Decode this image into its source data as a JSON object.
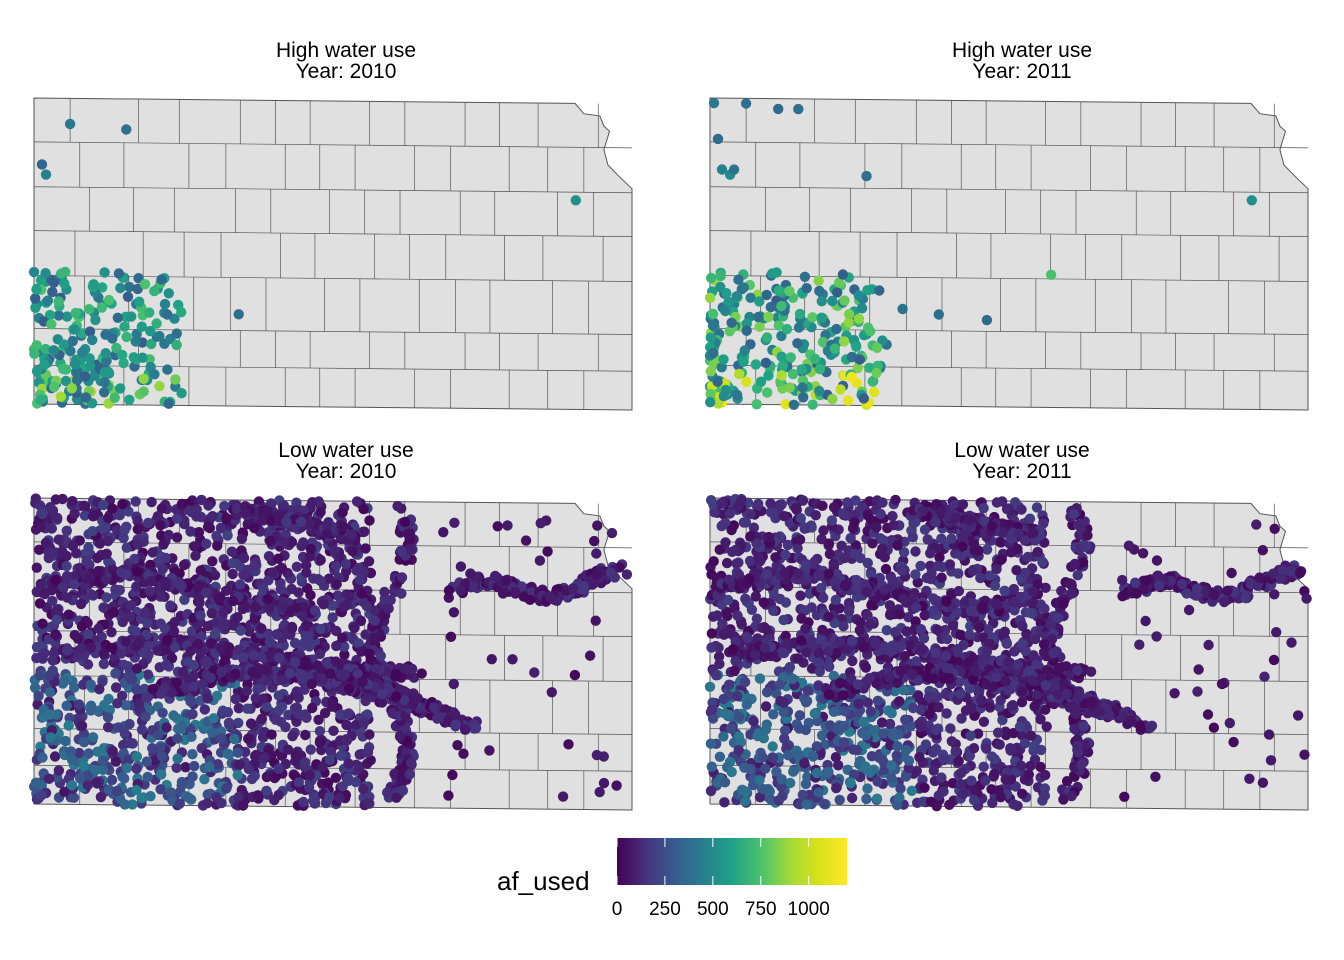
{
  "panels": [
    {
      "group": "High water use",
      "year_label": "Year:  2010",
      "key": "high2010"
    },
    {
      "group": "High water use",
      "year_label": "Year:  2011",
      "key": "high2011"
    },
    {
      "group": "Low water use",
      "year_label": "Year:  2010",
      "key": "low2010"
    },
    {
      "group": "Low water use",
      "year_label": "Year:  2011",
      "key": "low2011"
    }
  ],
  "legend": {
    "title": "af_used",
    "tick_labels": [
      "0",
      "250",
      "500",
      "750",
      "1000"
    ],
    "tick_values": [
      0,
      250,
      500,
      750,
      1000
    ],
    "range": [
      0,
      1200
    ],
    "colors": [
      "#440154",
      "#3b528b",
      "#21908c",
      "#5dc863",
      "#fde725"
    ]
  },
  "map_style": {
    "state_fill": "#e0e0e0",
    "boundary_color": "#555555",
    "background": "#ffffff"
  },
  "chart_data": {
    "type": "scatter",
    "description_type": "faceted point map of Kansas water rights colored by af_used",
    "facets": [
      {
        "panel": "High water use / 2010",
        "points_lonlat_value": [
          [
            -101.6,
            39.75,
            420
          ],
          [
            -100.9,
            39.7,
            380
          ],
          [
            -101.95,
            39.35,
            340
          ],
          [
            -101.9,
            39.25,
            460
          ],
          [
            -95.3,
            39.05,
            520
          ],
          [
            -101.9,
            38.2,
            560
          ],
          [
            -101.2,
            38.15,
            620
          ],
          [
            -100.3,
            37.85,
            480
          ],
          [
            -99.5,
            37.9,
            380
          ]
        ],
        "dense_cluster": {
          "lon_range": [
            -102.05,
            -100.2
          ],
          "lat_range": [
            37.0,
            38.3
          ],
          "value_range": [
            300,
            950
          ],
          "count": 220
        }
      },
      {
        "panel": "High water use / 2011",
        "points_lonlat_value": [
          [
            -102.0,
            39.95,
            420
          ],
          [
            -101.6,
            39.95,
            380
          ],
          [
            -101.2,
            39.9,
            360
          ],
          [
            -100.95,
            39.9,
            380
          ],
          [
            -101.95,
            39.6,
            360
          ],
          [
            -101.9,
            39.3,
            460
          ],
          [
            -101.8,
            39.25,
            500
          ],
          [
            -101.75,
            39.3,
            400
          ],
          [
            -100.1,
            39.25,
            380
          ],
          [
            -97.8,
            38.3,
            750
          ],
          [
            -95.3,
            39.05,
            520
          ],
          [
            -99.65,
            37.95,
            400
          ],
          [
            -99.2,
            37.9,
            380
          ],
          [
            -98.6,
            37.85,
            360
          ],
          [
            -100.1,
            37.7,
            420
          ],
          [
            -99.85,
            37.6,
            380
          ]
        ],
        "dense_cluster": {
          "lon_range": [
            -102.05,
            -99.9
          ],
          "lat_range": [
            37.0,
            38.3
          ],
          "value_range": [
            300,
            1150
          ],
          "count": 280
        }
      },
      {
        "panel": "Low water use / 2010",
        "dense_cluster": {
          "lon_range": [
            -102.05,
            -94.6
          ],
          "lat_range": [
            37.0,
            40.0
          ],
          "value_range": [
            0,
            500
          ],
          "count": 4200
        }
      },
      {
        "panel": "Low water use / 2011",
        "dense_cluster": {
          "lon_range": [
            -102.05,
            -94.6
          ],
          "lat_range": [
            37.0,
            40.0
          ],
          "value_range": [
            0,
            520
          ],
          "count": 4200
        }
      }
    ],
    "legend_title": "af_used",
    "legend_ticks": [
      0,
      250,
      500,
      750,
      1000
    ],
    "legend_placement": "bottom",
    "grid": false
  }
}
